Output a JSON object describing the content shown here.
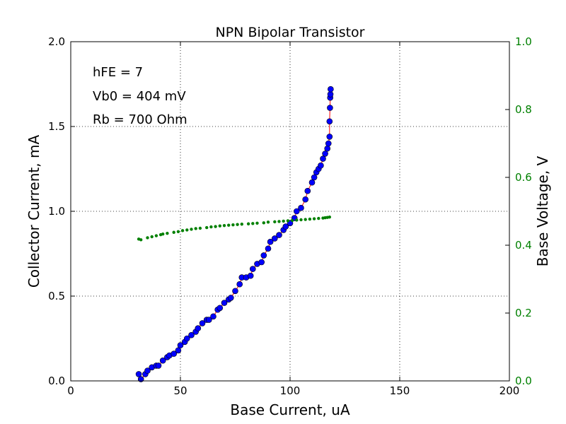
{
  "chart_data": {
    "type": "scatter",
    "title": "NPN Bipolar Transistor",
    "xlabel": "Base Current, uA",
    "ylabel": "Collector Current, mA",
    "y2label": "Base Voltage, V",
    "xlim": [
      0,
      200
    ],
    "ylim": [
      0,
      2.0
    ],
    "y2lim": [
      0,
      1.0
    ],
    "xticks": [
      "0",
      "50",
      "100",
      "150",
      "200"
    ],
    "yticks": [
      "0.0",
      "0.5",
      "1.0",
      "1.5",
      "2.0"
    ],
    "y2ticks": [
      "0.0",
      "0.2",
      "0.4",
      "0.6",
      "0.8",
      "1.0"
    ],
    "grid": true,
    "annotations": [
      "hFE = 7",
      "Vb0 = 404 mV",
      "Rb = 700 Ohm"
    ],
    "colors": {
      "collector_marker": "#0000ff",
      "collector_line": "#ff0000",
      "base_voltage": "#008000",
      "right_axis": "#008000"
    },
    "series": [
      {
        "axis": "left",
        "style": "line+marker",
        "x": [
          31,
          32,
          34,
          35,
          37,
          39,
          40,
          42,
          44,
          45,
          47,
          49,
          50,
          52,
          53,
          55,
          57,
          58,
          60,
          62,
          63,
          65,
          67,
          68,
          70,
          72,
          73,
          75,
          77,
          78,
          80,
          82,
          83,
          85,
          87,
          88,
          90,
          91,
          93,
          95,
          97,
          98,
          100,
          102,
          103,
          105,
          107,
          108,
          110,
          111,
          112,
          113,
          114,
          115,
          116,
          117,
          117.5,
          118,
          118,
          118.2,
          118.3,
          118.4,
          118.5
        ],
        "y": [
          0.04,
          0.01,
          0.04,
          0.06,
          0.08,
          0.09,
          0.09,
          0.12,
          0.14,
          0.15,
          0.16,
          0.18,
          0.21,
          0.23,
          0.25,
          0.27,
          0.29,
          0.31,
          0.34,
          0.36,
          0.36,
          0.38,
          0.42,
          0.43,
          0.46,
          0.48,
          0.49,
          0.53,
          0.57,
          0.61,
          0.61,
          0.62,
          0.66,
          0.69,
          0.7,
          0.74,
          0.78,
          0.82,
          0.84,
          0.86,
          0.89,
          0.91,
          0.93,
          0.96,
          1.0,
          1.02,
          1.07,
          1.12,
          1.17,
          1.2,
          1.23,
          1.25,
          1.27,
          1.31,
          1.34,
          1.37,
          1.4,
          1.44,
          1.53,
          1.61,
          1.67,
          1.69,
          1.72
        ]
      },
      {
        "axis": "right",
        "style": "marker",
        "x": [
          31,
          32,
          35,
          37,
          39,
          41,
          42,
          44,
          47,
          49,
          51,
          53,
          55,
          57,
          59,
          62,
          64,
          66,
          68,
          70,
          72,
          74,
          76,
          78,
          81,
          83,
          85,
          88,
          90,
          93,
          95,
          97,
          99,
          101,
          103,
          105,
          107,
          109,
          111,
          113,
          115,
          116,
          117,
          118
        ],
        "y": [
          0.418,
          0.416,
          0.422,
          0.425,
          0.428,
          0.431,
          0.433,
          0.435,
          0.438,
          0.44,
          0.443,
          0.445,
          0.447,
          0.449,
          0.45,
          0.452,
          0.454,
          0.455,
          0.457,
          0.458,
          0.459,
          0.46,
          0.461,
          0.462,
          0.463,
          0.464,
          0.465,
          0.466,
          0.468,
          0.469,
          0.47,
          0.471,
          0.472,
          0.473,
          0.474,
          0.475,
          0.476,
          0.477,
          0.478,
          0.479,
          0.48,
          0.481,
          0.482,
          0.483
        ]
      }
    ]
  }
}
